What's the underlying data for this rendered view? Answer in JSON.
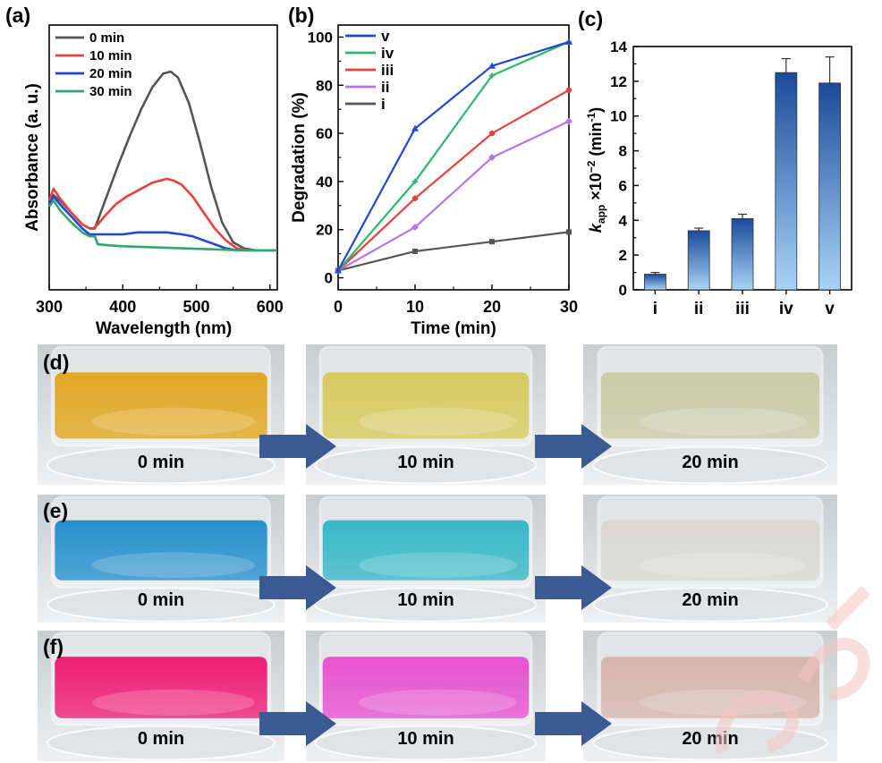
{
  "panels": {
    "a": "(a)",
    "b": "(b)",
    "c": "(c)",
    "d": "(d)",
    "e": "(e)",
    "f": "(f)"
  },
  "chart_data": [
    {
      "type": "line",
      "panel": "(a)",
      "xlabel": "Wavelength (nm)",
      "ylabel": "Absorbance (a. u.)",
      "xlim": [
        300,
        610
      ],
      "ylim": [
        0,
        1.0
      ],
      "xticks": [
        300,
        400,
        500,
        600
      ],
      "yticks": [],
      "legend_position": "top-left",
      "series": [
        {
          "name": "0 min",
          "color": "#555555",
          "x": [
            300,
            305,
            315,
            330,
            345,
            355,
            362,
            366,
            370,
            380,
            395,
            410,
            425,
            440,
            455,
            465,
            475,
            490,
            505,
            520,
            535,
            550,
            565,
            580,
            600,
            610
          ],
          "y": [
            0.26,
            0.29,
            0.26,
            0.2,
            0.14,
            0.12,
            0.12,
            0.16,
            0.2,
            0.3,
            0.45,
            0.59,
            0.72,
            0.83,
            0.9,
            0.91,
            0.88,
            0.75,
            0.55,
            0.33,
            0.15,
            0.05,
            0.02,
            0.01,
            0.01,
            0.01
          ]
        },
        {
          "name": "10 min",
          "color": "#e8413b",
          "x": [
            300,
            306,
            315,
            330,
            345,
            355,
            360,
            366,
            375,
            390,
            405,
            420,
            440,
            460,
            470,
            480,
            495,
            510,
            525,
            540,
            555,
            570,
            600,
            610
          ],
          "y": [
            0.26,
            0.32,
            0.27,
            0.2,
            0.14,
            0.12,
            0.12,
            0.14,
            0.18,
            0.24,
            0.28,
            0.31,
            0.35,
            0.37,
            0.36,
            0.34,
            0.28,
            0.2,
            0.12,
            0.06,
            0.02,
            0.01,
            0.01,
            0.01
          ]
        },
        {
          "name": "20 min",
          "color": "#2147d6",
          "x": [
            300,
            306,
            315,
            330,
            345,
            355,
            362,
            366,
            380,
            400,
            420,
            440,
            460,
            480,
            495,
            510,
            525,
            540,
            555,
            570,
            600,
            610
          ],
          "y": [
            0.24,
            0.28,
            0.24,
            0.18,
            0.12,
            0.09,
            0.09,
            0.09,
            0.09,
            0.09,
            0.1,
            0.1,
            0.1,
            0.09,
            0.08,
            0.06,
            0.04,
            0.02,
            0.01,
            0.01,
            0.01,
            0.01
          ]
        },
        {
          "name": "30 min",
          "color": "#2fa86a",
          "x": [
            300,
            306,
            315,
            330,
            345,
            355,
            362,
            366,
            380,
            400,
            440,
            480,
            520,
            560,
            600,
            610
          ],
          "y": [
            0.23,
            0.26,
            0.21,
            0.15,
            0.1,
            0.08,
            0.08,
            0.04,
            0.035,
            0.03,
            0.025,
            0.02,
            0.015,
            0.01,
            0.01,
            0.01
          ]
        }
      ]
    },
    {
      "type": "line",
      "panel": "(b)",
      "xlabel": "Time (min)",
      "ylabel": "Degradation (%)",
      "xlim": [
        0,
        30
      ],
      "ylim": [
        -5,
        105
      ],
      "xticks": [
        0,
        10,
        20,
        30
      ],
      "yticks": [
        0,
        20,
        40,
        60,
        80,
        100
      ],
      "legend_position": "top-left",
      "x": [
        0,
        10,
        20,
        30
      ],
      "series": [
        {
          "name": "v",
          "color": "#2147d6",
          "values": [
            3,
            62,
            88,
            98
          ]
        },
        {
          "name": "iv",
          "color": "#2fb76d",
          "values": [
            3,
            40,
            84,
            98
          ]
        },
        {
          "name": "iii",
          "color": "#e8413b",
          "values": [
            3,
            33,
            60,
            78
          ]
        },
        {
          "name": "ii",
          "color": "#b774e6",
          "values": [
            3,
            21,
            50,
            65
          ]
        },
        {
          "name": "i",
          "color": "#555555",
          "values": [
            3,
            11,
            15,
            19
          ]
        }
      ]
    },
    {
      "type": "bar",
      "panel": "(c)",
      "ylabel_main": "k",
      "ylabel_sub": "app",
      "ylabel_rest": " ×10",
      "ylabel_exp": "−2",
      "ylabel_unit": " (min",
      "ylabel_unit_exp": "-1",
      "ylabel_close": ")",
      "ylim": [
        0,
        14
      ],
      "yticks": [
        0,
        2,
        4,
        6,
        8,
        10,
        12,
        14
      ],
      "categories": [
        "i",
        "ii",
        "iii",
        "iv",
        "v"
      ],
      "values": [
        0.9,
        3.4,
        4.1,
        12.5,
        11.9
      ],
      "errors": [
        0.1,
        0.15,
        0.25,
        0.8,
        1.5
      ],
      "bar_color_top": "#1a4a9a",
      "bar_color_bottom": "#a9d4f7"
    }
  ],
  "photos": [
    {
      "row": "d",
      "labels": [
        "0 min",
        "10 min",
        "20 min"
      ],
      "colors": [
        "#e0a417",
        "#d8c857",
        "#cbc9a4"
      ]
    },
    {
      "row": "e",
      "labels": [
        "0 min",
        "10 min",
        "20 min"
      ],
      "colors": [
        "#1d8ccc",
        "#2fb6c6",
        "#d9d9cf"
      ]
    },
    {
      "row": "f",
      "labels": [
        "0 min",
        "10 min",
        "20 min"
      ],
      "colors": [
        "#f0136f",
        "#e84ad0",
        "#d6b3a9"
      ]
    }
  ]
}
